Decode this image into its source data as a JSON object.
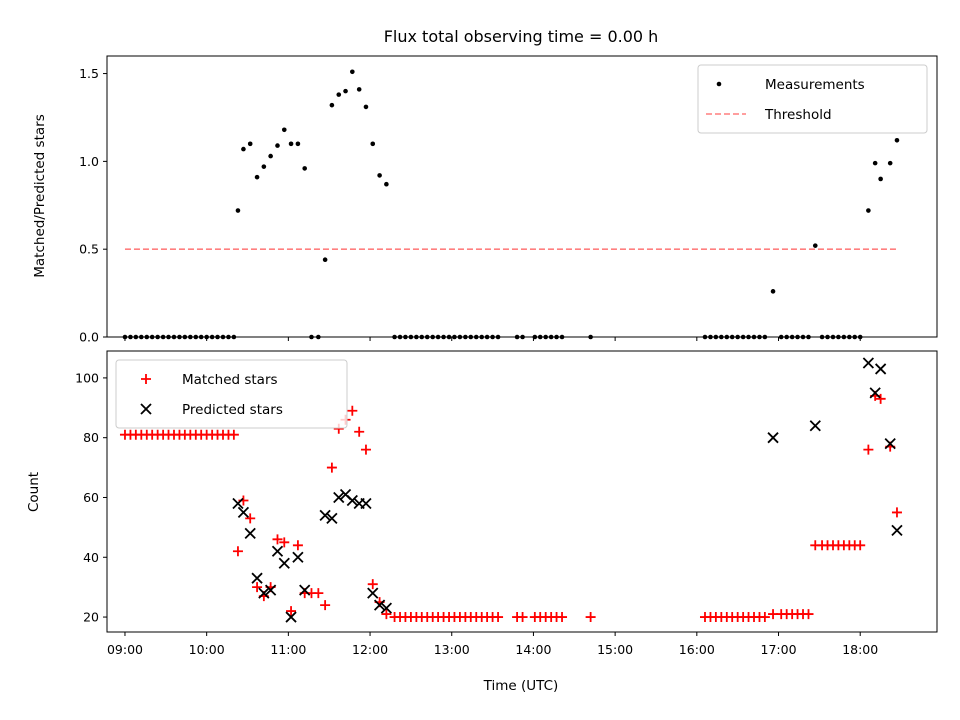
{
  "chart_data": [
    {
      "type": "scatter",
      "title": "Flux total observing time = 0.00 h",
      "xlabel": "",
      "ylabel": "Matched/Predicted stars",
      "xlim": [
        8.78,
        18.94
      ],
      "ylim": [
        0,
        1.6
      ],
      "yticks": [
        0.0,
        0.5,
        1.0,
        1.5
      ],
      "ytick_labels": [
        "0.0",
        "0.5",
        "1.0",
        "1.5"
      ],
      "xticks": [
        9,
        10,
        11,
        12,
        13,
        14,
        15,
        16,
        17,
        18
      ],
      "grid": false,
      "legend_position": "top-right",
      "series": [
        {
          "name": "Measurements",
          "kind": "dots",
          "color": "#000000",
          "x": [
            9.0,
            9.067,
            9.133,
            9.2,
            9.267,
            9.333,
            9.4,
            9.467,
            9.533,
            9.6,
            9.667,
            9.733,
            9.8,
            9.867,
            9.933,
            10.0,
            10.067,
            10.133,
            10.2,
            10.267,
            10.333,
            10.383,
            10.45,
            10.533,
            10.617,
            10.7,
            10.783,
            10.867,
            10.95,
            11.033,
            11.117,
            11.2,
            11.283,
            11.367,
            11.45,
            11.533,
            11.617,
            11.7,
            11.783,
            11.867,
            11.95,
            12.033,
            12.117,
            12.2,
            12.3,
            12.367,
            12.433,
            12.5,
            12.567,
            12.633,
            12.7,
            12.767,
            12.833,
            12.9,
            12.967,
            13.033,
            13.1,
            13.167,
            13.233,
            13.3,
            13.367,
            13.433,
            13.5,
            13.567,
            13.8,
            13.867,
            14.017,
            14.083,
            14.15,
            14.217,
            14.283,
            14.35,
            14.7,
            16.1,
            16.167,
            16.233,
            16.3,
            16.367,
            16.433,
            16.5,
            16.567,
            16.633,
            16.7,
            16.767,
            16.833,
            16.933,
            17.033,
            17.1,
            17.167,
            17.233,
            17.3,
            17.367,
            17.45,
            17.533,
            17.6,
            17.667,
            17.733,
            17.8,
            17.867,
            17.933,
            18.0,
            18.1,
            18.183,
            18.25,
            18.367,
            18.45
          ],
          "y": [
            0,
            0,
            0,
            0,
            0,
            0,
            0,
            0,
            0,
            0,
            0,
            0,
            0,
            0,
            0,
            0,
            0,
            0,
            0,
            0,
            0,
            0.72,
            1.07,
            1.1,
            0.91,
            0.97,
            1.03,
            1.09,
            1.18,
            1.1,
            1.1,
            0.96,
            0,
            0,
            0.44,
            1.32,
            1.38,
            1.4,
            1.51,
            1.41,
            1.31,
            1.1,
            0.92,
            0.87,
            0,
            0,
            0,
            0,
            0,
            0,
            0,
            0,
            0,
            0,
            0,
            0,
            0,
            0,
            0,
            0,
            0,
            0,
            0,
            0,
            0,
            0,
            0,
            0,
            0,
            0,
            0,
            0,
            0,
            0,
            0,
            0,
            0,
            0,
            0,
            0,
            0,
            0,
            0,
            0,
            0,
            0.26,
            0,
            0,
            0,
            0,
            0,
            0,
            0.52,
            0,
            0,
            0,
            0,
            0,
            0,
            0,
            0,
            0.72,
            0.99,
            0.9,
            0.99,
            1.12
          ]
        },
        {
          "name": "Threshold",
          "kind": "dashed-line",
          "color": "#ff7f7f",
          "x": [
            9.0,
            18.45
          ],
          "y": [
            0.5,
            0.5
          ]
        }
      ]
    },
    {
      "type": "scatter",
      "title": "",
      "xlabel": "Time (UTC)",
      "ylabel": "Count",
      "xlim": [
        8.78,
        18.94
      ],
      "ylim": [
        15,
        109
      ],
      "yticks": [
        20,
        40,
        60,
        80,
        100
      ],
      "ytick_labels": [
        "20",
        "40",
        "60",
        "80",
        "100"
      ],
      "xticks": [
        9,
        10,
        11,
        12,
        13,
        14,
        15,
        16,
        17,
        18
      ],
      "xtick_labels": [
        "09:00",
        "10:00",
        "11:00",
        "12:00",
        "13:00",
        "14:00",
        "15:00",
        "16:00",
        "17:00",
        "18:00"
      ],
      "grid": false,
      "legend_position": "top-left",
      "series": [
        {
          "name": "Matched stars",
          "marker": "plus",
          "color": "#ff0000",
          "x": [
            9.0,
            9.067,
            9.133,
            9.2,
            9.267,
            9.333,
            9.4,
            9.467,
            9.533,
            9.6,
            9.667,
            9.733,
            9.8,
            9.867,
            9.933,
            10.0,
            10.067,
            10.133,
            10.2,
            10.267,
            10.333,
            10.383,
            10.45,
            10.533,
            10.617,
            10.7,
            10.783,
            10.867,
            10.95,
            11.033,
            11.117,
            11.2,
            11.283,
            11.367,
            11.45,
            11.533,
            11.617,
            11.7,
            11.783,
            11.867,
            11.95,
            12.033,
            12.117,
            12.2,
            12.3,
            12.367,
            12.433,
            12.5,
            12.567,
            12.633,
            12.7,
            12.767,
            12.833,
            12.9,
            12.967,
            13.033,
            13.1,
            13.167,
            13.233,
            13.3,
            13.367,
            13.433,
            13.5,
            13.567,
            13.8,
            13.867,
            14.017,
            14.083,
            14.15,
            14.217,
            14.283,
            14.35,
            14.7,
            16.1,
            16.167,
            16.233,
            16.3,
            16.367,
            16.433,
            16.5,
            16.567,
            16.633,
            16.7,
            16.767,
            16.833,
            16.933,
            17.033,
            17.1,
            17.167,
            17.233,
            17.3,
            17.367,
            17.45,
            17.533,
            17.6,
            17.667,
            17.733,
            17.8,
            17.867,
            17.933,
            18.0,
            18.1,
            18.183,
            18.25,
            18.367,
            18.45
          ],
          "y": [
            81,
            81,
            81,
            81,
            81,
            81,
            81,
            81,
            81,
            81,
            81,
            81,
            81,
            81,
            81,
            81,
            81,
            81,
            81,
            81,
            81,
            42,
            59,
            53,
            30,
            27,
            30,
            46,
            45,
            22,
            44,
            28,
            28,
            28,
            24,
            70,
            83,
            86,
            89,
            82,
            76,
            31,
            25,
            21,
            20,
            20,
            20,
            20,
            20,
            20,
            20,
            20,
            20,
            20,
            20,
            20,
            20,
            20,
            20,
            20,
            20,
            20,
            20,
            20,
            20,
            20,
            20,
            20,
            20,
            20,
            20,
            20,
            20,
            20,
            20,
            20,
            20,
            20,
            20,
            20,
            20,
            20,
            20,
            20,
            20,
            21,
            21,
            21,
            21,
            21,
            21,
            21,
            44,
            44,
            44,
            44,
            44,
            44,
            44,
            44,
            44,
            76,
            94,
            93,
            77,
            55
          ]
        },
        {
          "name": "Predicted stars",
          "marker": "x",
          "color": "#000000",
          "x": [
            10.383,
            10.45,
            10.533,
            10.617,
            10.7,
            10.783,
            10.867,
            10.95,
            11.033,
            11.117,
            11.2,
            11.45,
            11.533,
            11.617,
            11.7,
            11.783,
            11.867,
            11.95,
            12.033,
            12.117,
            12.2,
            16.933,
            17.45,
            18.1,
            18.183,
            18.25,
            18.367,
            18.45
          ],
          "y": [
            58,
            55,
            48,
            33,
            28,
            29,
            42,
            38,
            20,
            40,
            29,
            54,
            53,
            60,
            61,
            59,
            58,
            58,
            28,
            24,
            23,
            80,
            84,
            105,
            95,
            103,
            78,
            49
          ]
        }
      ]
    }
  ]
}
